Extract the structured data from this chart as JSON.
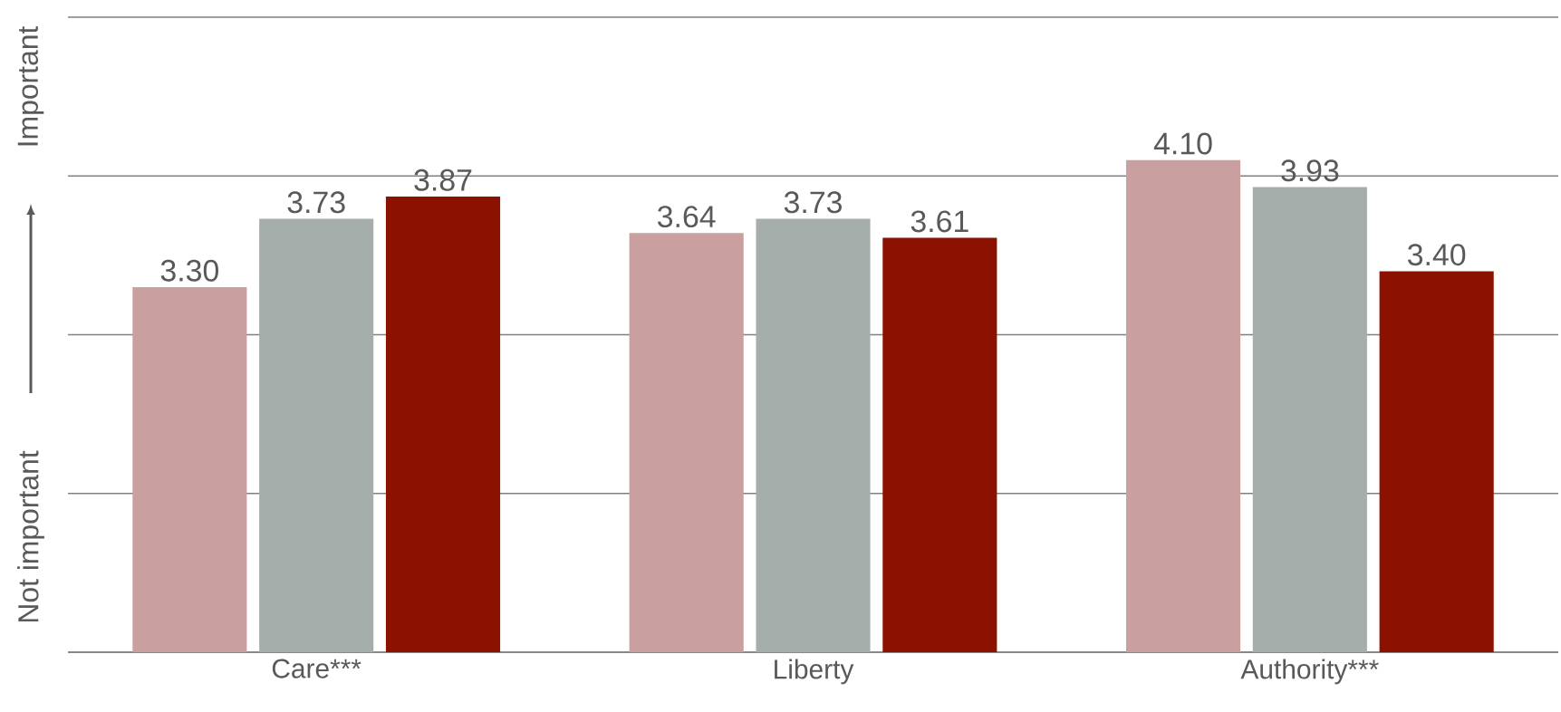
{
  "chart_data": {
    "type": "bar",
    "ylabel": "Not important",
    "annotations": [
      "Important"
    ],
    "categories": [
      "Care***",
      "Liberty",
      "Authority***"
    ],
    "series": [
      {
        "color": "#c9a09f",
        "values": [
          3.3,
          3.64,
          4.1
        ],
        "value_labels": [
          "3.30",
          "3.64",
          "4.10"
        ]
      },
      {
        "color": "#a6aeab",
        "values": [
          3.73,
          3.73,
          3.93
        ],
        "value_labels": [
          "3.73",
          "3.73",
          "3.93"
        ]
      },
      {
        "color": "#8b1200",
        "values": [
          3.87,
          3.61,
          3.4
        ],
        "value_labels": [
          "3.87",
          "3.61",
          "3.40"
        ]
      }
    ],
    "ylim": [
      1,
      5
    ],
    "yticks": [
      {
        "value": 1,
        "label": null
      },
      {
        "value": 2,
        "label": null
      },
      {
        "value": 3,
        "label": null
      },
      {
        "value": 4,
        "label": null
      },
      {
        "value": 5,
        "label": null
      }
    ],
    "grid": "y",
    "tick_labels": "x",
    "data_labels": true
  }
}
